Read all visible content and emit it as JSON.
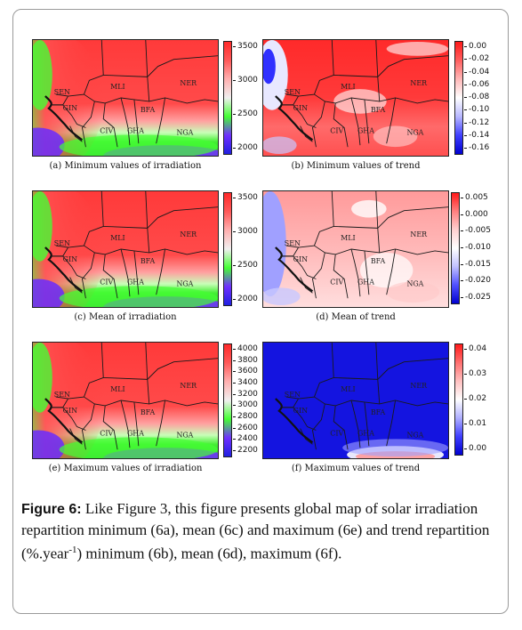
{
  "figure": {
    "label": "Figure 6:",
    "caption_a": " Like Figure 3, this figure presents global map of solar irradiation repartition minimum (6a), mean (6c) and maximum (6e) and trend repartition (%.year",
    "caption_sup": "-1",
    "caption_b": ") minimum (6b), mean (6d), maximum (6f)."
  },
  "panels": [
    {
      "id": "a",
      "caption": "(a) Minimum values of irradiation",
      "kind": "irr",
      "colorbar": {
        "ticks": [
          "3500",
          "3000",
          "2500",
          "2000"
        ],
        "colors": [
          "#ff2a2a",
          "#ff5a5a",
          "#ffb0b0",
          "#f0f0f0",
          "#44ff33",
          "#7030ff",
          "#2020e0"
        ]
      },
      "labels": [
        "MLI",
        "NER",
        "SEN",
        "GIN",
        "BFA",
        "CIV",
        "GHA",
        "NGA"
      ]
    },
    {
      "id": "b",
      "caption": "(b) Minimum values of trend",
      "kind": "trend_min",
      "colorbar": {
        "ticks": [
          "0.00",
          "-0.02",
          "-0.04",
          "-0.06",
          "-0.08",
          "-0.10",
          "-0.12",
          "-0.14",
          "-0.16"
        ],
        "colors": [
          "#ff1a1a",
          "#ff6060",
          "#ffb8b8",
          "#ffffff",
          "#b8b8ff",
          "#4040ff",
          "#0000d0"
        ]
      },
      "labels": [
        "MLI",
        "NER",
        "SEN",
        "GIN",
        "BFA",
        "CIV",
        "GHA",
        "NGA"
      ]
    },
    {
      "id": "c",
      "caption": "(c) Mean of irradiation",
      "kind": "irr",
      "colorbar": {
        "ticks": [
          "3500",
          "3000",
          "2500",
          "2000"
        ],
        "colors": [
          "#ff2a2a",
          "#ff5a5a",
          "#ffb0b0",
          "#f0f0f0",
          "#44ff33",
          "#7030ff",
          "#2020e0"
        ]
      },
      "labels": [
        "MLI",
        "NER",
        "SEN",
        "GIN",
        "BFA",
        "CIV",
        "GHA",
        "NGA"
      ]
    },
    {
      "id": "d",
      "caption": "(d) Mean of trend",
      "kind": "trend_mean",
      "colorbar": {
        "ticks": [
          "0.005",
          "0.000",
          "-0.005",
          "-0.010",
          "-0.015",
          "-0.020",
          "-0.025"
        ],
        "colors": [
          "#ff1a1a",
          "#ff8080",
          "#ffd0d0",
          "#ffffff",
          "#c0c0ff",
          "#5050ff",
          "#0000d0"
        ]
      },
      "labels": [
        "MLI",
        "NER",
        "SEN",
        "GIN",
        "BFA",
        "CIV",
        "GHA",
        "NGA"
      ]
    },
    {
      "id": "e",
      "caption": "(e) Maximum values of irradiation",
      "kind": "irr",
      "colorbar": {
        "ticks": [
          "4000",
          "3800",
          "3600",
          "3400",
          "3200",
          "3000",
          "2800",
          "2600",
          "2400",
          "2200"
        ],
        "colors": [
          "#ff2a2a",
          "#ff5a5a",
          "#ffb0b0",
          "#f0f0f0",
          "#44ff33",
          "#7030ff",
          "#2020e0"
        ]
      },
      "labels": [
        "MLI",
        "NER",
        "SEN",
        "GIN",
        "BFA",
        "CIV",
        "GHA",
        "NGA"
      ]
    },
    {
      "id": "f",
      "caption": "(f) Maximum values of trend",
      "kind": "trend_max",
      "colorbar": {
        "ticks": [
          "0.04",
          "0.03",
          "0.02",
          "0.01",
          "0.00"
        ],
        "colors": [
          "#ff1a1a",
          "#ff7070",
          "#ffc0c0",
          "#ffffff",
          "#b0b0ff",
          "#4040ff",
          "#0000d0"
        ]
      },
      "labels": [
        "MLI",
        "NER",
        "SEN",
        "GIN",
        "BFA",
        "CIV",
        "GHA",
        "NGA"
      ]
    }
  ]
}
